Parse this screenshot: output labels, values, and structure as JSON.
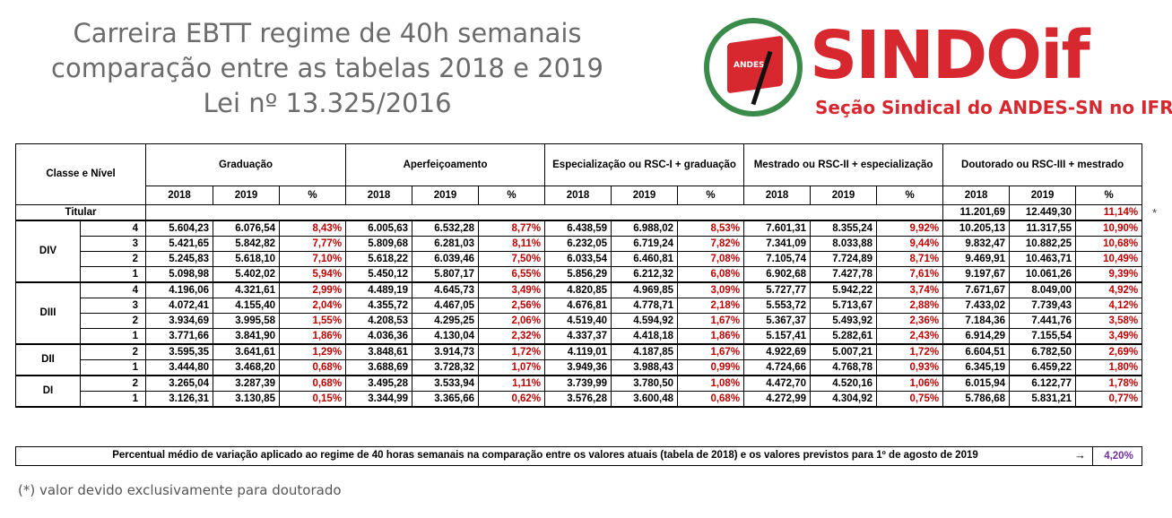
{
  "title": {
    "line1": "Carreira EBTT regime de 40h semanais",
    "line2": "comparação entre as tabelas 2018 e 2019",
    "line3": "Lei nº 13.325/2016"
  },
  "logo": {
    "word": "SINDOif",
    "subtitle": "Seção Sindical do ANDES-SN no IFRS",
    "flag_text": "ANDES"
  },
  "table": {
    "classe_nivel_label": "Classe e Nível",
    "groups": [
      "Graduação",
      "Aperfeiçoamento",
      "Especialização ou RSC-I + graduação",
      "Mestrado ou RSC-II + especialização",
      "Doutorado ou RSC-III + mestrado"
    ],
    "subheaders": [
      "2018",
      "2019",
      "%"
    ],
    "titular": {
      "label": "Titular",
      "v2018": "11.201,69",
      "v2019": "12.449,30",
      "pct": "11,14%"
    },
    "classes": [
      {
        "name": "DIV",
        "rows": [
          {
            "level": "4",
            "values": [
              "5.604,23",
              "6.076,54",
              "8,43%",
              "6.005,63",
              "6.532,28",
              "8,77%",
              "6.438,59",
              "6.988,02",
              "8,53%",
              "7.601,31",
              "8.355,24",
              "9,92%",
              "10.205,13",
              "11.317,55",
              "10,90%"
            ]
          },
          {
            "level": "3",
            "values": [
              "5.421,65",
              "5.842,82",
              "7,77%",
              "5.809,68",
              "6.281,03",
              "8,11%",
              "6.232,05",
              "6.719,24",
              "7,82%",
              "7.341,09",
              "8.033,88",
              "9,44%",
              "9.832,47",
              "10.882,25",
              "10,68%"
            ]
          },
          {
            "level": "2",
            "values": [
              "5.245,83",
              "5.618,10",
              "7,10%",
              "5.618,22",
              "6.039,46",
              "7,50%",
              "6.033,54",
              "6.460,81",
              "7,08%",
              "7.105,74",
              "7.724,89",
              "8,71%",
              "9.469,91",
              "10.463,71",
              "10,49%"
            ]
          },
          {
            "level": "1",
            "values": [
              "5.098,98",
              "5.402,02",
              "5,94%",
              "5.450,12",
              "5.807,17",
              "6,55%",
              "5.856,29",
              "6.212,32",
              "6,08%",
              "6.902,68",
              "7.427,78",
              "7,61%",
              "9.197,67",
              "10.061,26",
              "9,39%"
            ]
          }
        ]
      },
      {
        "name": "DIII",
        "rows": [
          {
            "level": "4",
            "values": [
              "4.196,06",
              "4.321,61",
              "2,99%",
              "4.489,19",
              "4.645,73",
              "3,49%",
              "4.820,85",
              "4.969,85",
              "3,09%",
              "5.727,77",
              "5.942,22",
              "3,74%",
              "7.671,67",
              "8.049,00",
              "4,92%"
            ]
          },
          {
            "level": "3",
            "values": [
              "4.072,41",
              "4.155,40",
              "2,04%",
              "4.355,72",
              "4.467,05",
              "2,56%",
              "4.676,81",
              "4.778,71",
              "2,18%",
              "5.553,72",
              "5.713,67",
              "2,88%",
              "7.433,02",
              "7.739,43",
              "4,12%"
            ]
          },
          {
            "level": "2",
            "values": [
              "3.934,69",
              "3.995,58",
              "1,55%",
              "4.208,53",
              "4.295,25",
              "2,06%",
              "4.519,40",
              "4.594,92",
              "1,67%",
              "5.367,37",
              "5.493,92",
              "2,36%",
              "7.184,36",
              "7.441,76",
              "3,58%"
            ]
          },
          {
            "level": "1",
            "values": [
              "3.771,66",
              "3.841,90",
              "1,86%",
              "4.036,36",
              "4.130,04",
              "2,32%",
              "4.337,37",
              "4.418,18",
              "1,86%",
              "5.157,41",
              "5.282,61",
              "2,43%",
              "6.914,29",
              "7.155,54",
              "3,49%"
            ]
          }
        ]
      },
      {
        "name": "DII",
        "rows": [
          {
            "level": "2",
            "values": [
              "3.595,35",
              "3.641,61",
              "1,29%",
              "3.848,61",
              "3.914,73",
              "1,72%",
              "4.119,01",
              "4.187,85",
              "1,67%",
              "4.922,69",
              "5.007,21",
              "1,72%",
              "6.604,51",
              "6.782,50",
              "2,69%"
            ]
          },
          {
            "level": "1",
            "values": [
              "3.444,80",
              "3.468,20",
              "0,68%",
              "3.688,69",
              "3.728,32",
              "1,07%",
              "3.949,36",
              "3.988,43",
              "0,99%",
              "4.724,66",
              "4.768,78",
              "0,93%",
              "6.345,19",
              "6.459,22",
              "1,80%"
            ]
          }
        ]
      },
      {
        "name": "DI",
        "rows": [
          {
            "level": "2",
            "values": [
              "3.265,04",
              "3.287,39",
              "0,68%",
              "3.495,28",
              "3.533,94",
              "1,11%",
              "3.739,99",
              "3.780,50",
              "1,08%",
              "4.472,70",
              "4.520,16",
              "1,06%",
              "6.015,94",
              "6.122,77",
              "1,78%"
            ]
          },
          {
            "level": "1",
            "values": [
              "3.126,31",
              "3.130,85",
              "0,15%",
              "3.344,99",
              "3.365,66",
              "0,62%",
              "3.576,28",
              "3.600,48",
              "0,68%",
              "4.272,99",
              "4.304,92",
              "0,75%",
              "5.786,68",
              "5.831,21",
              "0,77%"
            ]
          }
        ]
      }
    ]
  },
  "titular_marker": "*",
  "summary": {
    "text": "Percentual médio de variação aplicado ao regime de 40 horas semanais na comparação entre os valores atuais (tabela de 2018) e os valores previstos para 1º de agosto de 2019",
    "arrow": "→",
    "value": "4,20%"
  },
  "footnote": "(*) valor devido exclusivamente para doutorado",
  "colors": {
    "brand_red": "#d7282f",
    "brand_green": "#3a8a4a",
    "pct_red": "#c00000",
    "summary_purple": "#7030a0",
    "title_gray": "#6b6b6b"
  }
}
